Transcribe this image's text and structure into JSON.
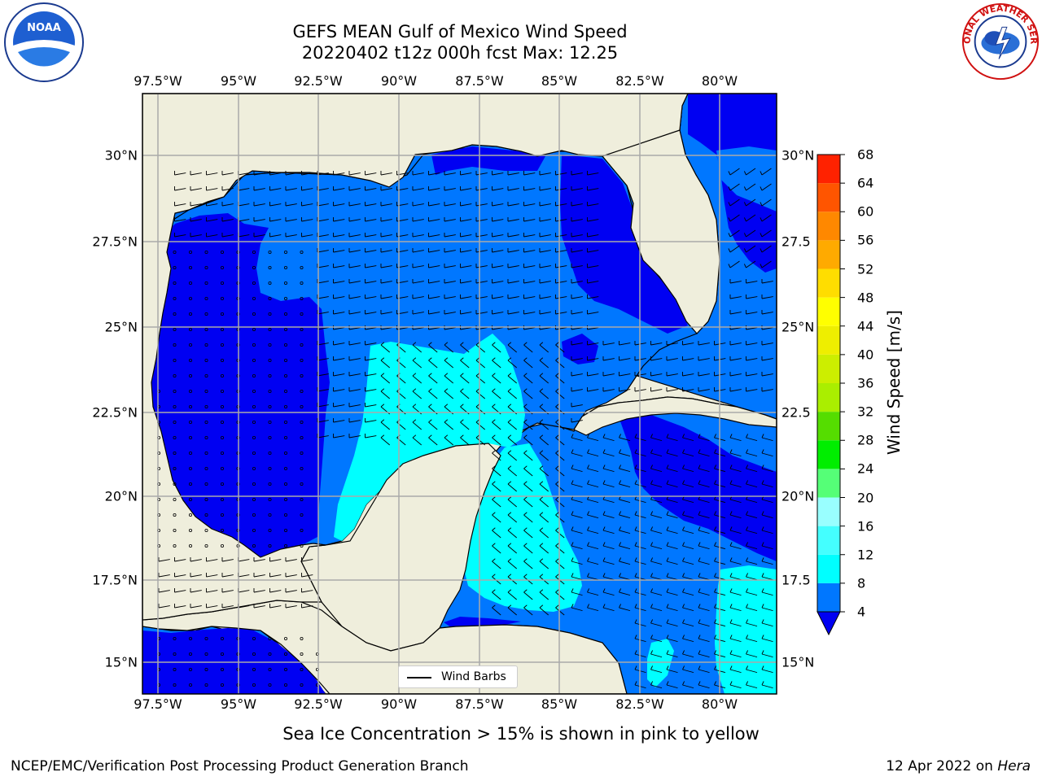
{
  "header": {
    "title_line1": "GEFS MEAN Gulf of Mexico Wind Speed",
    "title_line2": "20220402 t12z 000h fcst   Max: 12.25"
  },
  "map": {
    "lon_ticks": [
      "97.5°W",
      "95°W",
      "92.5°W",
      "90°W",
      "87.5°W",
      "85°W",
      "82.5°W",
      "80°W"
    ],
    "lat_ticks_left": [
      "30°N",
      "27.5°N",
      "25°N",
      "22.5°N",
      "20°N",
      "17.5°N",
      "15°N"
    ],
    "lat_ticks_right": [
      "30°N",
      "27.5",
      "25°N",
      "22.5",
      "20°N",
      "17.5",
      "15°N"
    ],
    "legend_label": "Wind Barbs",
    "colors": {
      "land": "#efeedc",
      "ocean_4": "#0077ff",
      "ocean_0": "#0000f2",
      "ocean_8": "#00ffff",
      "grid": "#aaaaaa"
    }
  },
  "colorbar": {
    "title": "Wind Speed [m/s]",
    "levels": [
      "4",
      "8",
      "12",
      "16",
      "20",
      "24",
      "28",
      "32",
      "36",
      "40",
      "44",
      "48",
      "52",
      "56",
      "60",
      "64",
      "68"
    ],
    "colors": [
      "#0077ff",
      "#00ffff",
      "#44ffff",
      "#99ffff",
      "#55ff77",
      "#00ee00",
      "#55dd00",
      "#aaee00",
      "#ccee00",
      "#eeee00",
      "#ffff00",
      "#ffdd00",
      "#ffaa00",
      "#ff8800",
      "#ff5500",
      "#ff2200"
    ],
    "under_color": "#0000f2"
  },
  "subtitle": "Sea Ice Concentration > 15% is shown in pink to yellow",
  "footer": {
    "left": "NCEP/EMC/Verification Post Processing Product Generation Branch",
    "right_date": "12 Apr 2022 on ",
    "right_host": "Hera"
  },
  "logos": {
    "noaa_text": "NOAA",
    "nws_text": "NATIONAL WEATHER SERVICE"
  }
}
